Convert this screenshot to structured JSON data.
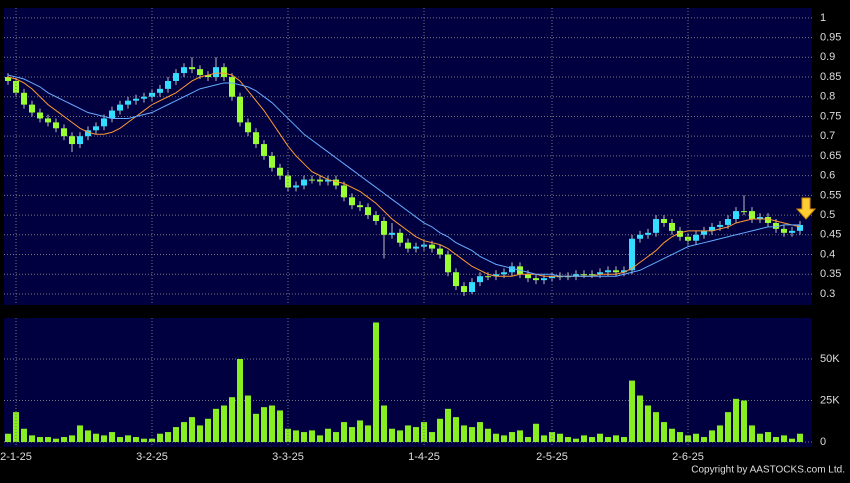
{
  "chart_data": [
    {
      "type": "candlestick",
      "up_color": "#33ddff",
      "down_color": "#99ff33",
      "open": [
        0.85,
        0.84,
        0.81,
        0.78,
        0.76,
        0.745,
        0.735,
        0.72,
        0.7,
        0.68,
        0.7,
        0.715,
        0.725,
        0.745,
        0.765,
        0.78,
        0.79,
        0.795,
        0.8,
        0.81,
        0.82,
        0.84,
        0.86,
        0.875,
        0.87,
        0.855,
        0.85,
        0.875,
        0.85,
        0.8,
        0.735,
        0.71,
        0.68,
        0.65,
        0.62,
        0.6,
        0.57,
        0.575,
        0.59,
        0.59,
        0.585,
        0.59,
        0.575,
        0.545,
        0.525,
        0.52,
        0.5,
        0.485,
        0.45,
        0.455,
        0.43,
        0.415,
        0.42,
        0.425,
        0.415,
        0.4,
        0.355,
        0.32,
        0.305,
        0.33,
        0.345,
        0.345,
        0.35,
        0.355,
        0.37,
        0.35,
        0.34,
        0.335,
        0.34,
        0.345,
        0.345,
        0.345,
        0.35,
        0.35,
        0.35,
        0.355,
        0.36,
        0.355,
        0.36,
        0.44,
        0.45,
        0.455,
        0.49,
        0.48,
        0.46,
        0.445,
        0.435,
        0.45,
        0.46,
        0.47,
        0.475,
        0.49,
        0.51,
        0.51,
        0.49,
        0.495,
        0.48,
        0.465,
        0.455,
        0.46
      ],
      "high": [
        0.86,
        0.85,
        0.82,
        0.79,
        0.77,
        0.755,
        0.745,
        0.73,
        0.71,
        0.71,
        0.725,
        0.735,
        0.755,
        0.775,
        0.79,
        0.8,
        0.805,
        0.81,
        0.82,
        0.83,
        0.85,
        0.87,
        0.885,
        0.9,
        0.88,
        0.865,
        0.9,
        0.885,
        0.86,
        0.81,
        0.745,
        0.72,
        0.69,
        0.66,
        0.63,
        0.61,
        0.585,
        0.6,
        0.6,
        0.6,
        0.6,
        0.6,
        0.585,
        0.555,
        0.535,
        0.53,
        0.51,
        0.495,
        0.48,
        0.465,
        0.44,
        0.43,
        0.435,
        0.435,
        0.425,
        0.41,
        0.365,
        0.33,
        0.34,
        0.355,
        0.355,
        0.36,
        0.365,
        0.38,
        0.38,
        0.36,
        0.35,
        0.35,
        0.355,
        0.355,
        0.355,
        0.36,
        0.36,
        0.36,
        0.365,
        0.37,
        0.37,
        0.37,
        0.45,
        0.46,
        0.465,
        0.5,
        0.5,
        0.49,
        0.47,
        0.455,
        0.46,
        0.47,
        0.48,
        0.485,
        0.5,
        0.52,
        0.55,
        0.52,
        0.505,
        0.505,
        0.49,
        0.475,
        0.47,
        0.485
      ],
      "low": [
        0.83,
        0.8,
        0.77,
        0.75,
        0.735,
        0.725,
        0.71,
        0.69,
        0.66,
        0.67,
        0.69,
        0.705,
        0.715,
        0.735,
        0.755,
        0.77,
        0.78,
        0.785,
        0.79,
        0.8,
        0.81,
        0.83,
        0.85,
        0.86,
        0.845,
        0.84,
        0.84,
        0.84,
        0.79,
        0.725,
        0.7,
        0.67,
        0.64,
        0.61,
        0.59,
        0.56,
        0.56,
        0.565,
        0.58,
        0.575,
        0.575,
        0.565,
        0.535,
        0.515,
        0.51,
        0.49,
        0.475,
        0.39,
        0.44,
        0.42,
        0.405,
        0.405,
        0.41,
        0.405,
        0.39,
        0.345,
        0.31,
        0.295,
        0.3,
        0.32,
        0.335,
        0.335,
        0.34,
        0.345,
        0.34,
        0.33,
        0.325,
        0.325,
        0.33,
        0.335,
        0.335,
        0.335,
        0.34,
        0.34,
        0.34,
        0.345,
        0.345,
        0.345,
        0.35,
        0.43,
        0.44,
        0.445,
        0.47,
        0.45,
        0.435,
        0.425,
        0.425,
        0.44,
        0.45,
        0.46,
        0.465,
        0.48,
        0.5,
        0.48,
        0.48,
        0.47,
        0.455,
        0.445,
        0.445,
        0.45
      ],
      "close": [
        0.84,
        0.81,
        0.78,
        0.76,
        0.745,
        0.735,
        0.72,
        0.7,
        0.68,
        0.7,
        0.715,
        0.725,
        0.745,
        0.765,
        0.78,
        0.79,
        0.795,
        0.8,
        0.81,
        0.82,
        0.84,
        0.86,
        0.875,
        0.87,
        0.855,
        0.85,
        0.875,
        0.85,
        0.8,
        0.735,
        0.71,
        0.68,
        0.65,
        0.62,
        0.6,
        0.57,
        0.575,
        0.59,
        0.59,
        0.585,
        0.59,
        0.575,
        0.545,
        0.525,
        0.52,
        0.5,
        0.485,
        0.45,
        0.455,
        0.43,
        0.415,
        0.42,
        0.425,
        0.415,
        0.4,
        0.355,
        0.32,
        0.305,
        0.33,
        0.345,
        0.345,
        0.35,
        0.355,
        0.37,
        0.35,
        0.34,
        0.335,
        0.34,
        0.345,
        0.345,
        0.345,
        0.35,
        0.35,
        0.35,
        0.355,
        0.36,
        0.355,
        0.36,
        0.44,
        0.45,
        0.455,
        0.49,
        0.48,
        0.46,
        0.445,
        0.435,
        0.45,
        0.46,
        0.47,
        0.475,
        0.49,
        0.51,
        0.51,
        0.49,
        0.495,
        0.48,
        0.465,
        0.455,
        0.46,
        0.475
      ],
      "series": [
        {
          "color": "#ff9933",
          "values": [
            0.85,
            0.845,
            0.835,
            0.82,
            0.8,
            0.78,
            0.765,
            0.75,
            0.735,
            0.72,
            0.71,
            0.705,
            0.705,
            0.71,
            0.72,
            0.735,
            0.75,
            0.765,
            0.78,
            0.79,
            0.8,
            0.81,
            0.825,
            0.84,
            0.85,
            0.855,
            0.86,
            0.86,
            0.855,
            0.84,
            0.815,
            0.79,
            0.765,
            0.735,
            0.705,
            0.675,
            0.65,
            0.63,
            0.61,
            0.6,
            0.59,
            0.585,
            0.58,
            0.57,
            0.56,
            0.545,
            0.53,
            0.51,
            0.49,
            0.475,
            0.46,
            0.445,
            0.435,
            0.43,
            0.425,
            0.415,
            0.4,
            0.385,
            0.37,
            0.36,
            0.35,
            0.345,
            0.345,
            0.345,
            0.35,
            0.35,
            0.35,
            0.345,
            0.345,
            0.345,
            0.345,
            0.345,
            0.345,
            0.345,
            0.35,
            0.35,
            0.35,
            0.355,
            0.365,
            0.38,
            0.395,
            0.41,
            0.43,
            0.445,
            0.455,
            0.46,
            0.46,
            0.46,
            0.46,
            0.465,
            0.47,
            0.48,
            0.485,
            0.49,
            0.49,
            0.49,
            0.485,
            0.48,
            0.475,
            0.47
          ]
        },
        {
          "color": "#66aaff",
          "values": [
            0.855,
            0.85,
            0.845,
            0.835,
            0.825,
            0.81,
            0.8,
            0.79,
            0.78,
            0.77,
            0.76,
            0.755,
            0.75,
            0.745,
            0.745,
            0.745,
            0.75,
            0.755,
            0.76,
            0.77,
            0.78,
            0.79,
            0.8,
            0.81,
            0.82,
            0.825,
            0.83,
            0.835,
            0.835,
            0.83,
            0.825,
            0.815,
            0.8,
            0.785,
            0.765,
            0.745,
            0.725,
            0.705,
            0.69,
            0.675,
            0.66,
            0.645,
            0.63,
            0.615,
            0.6,
            0.585,
            0.57,
            0.555,
            0.54,
            0.525,
            0.51,
            0.495,
            0.48,
            0.47,
            0.455,
            0.445,
            0.43,
            0.42,
            0.41,
            0.395,
            0.385,
            0.375,
            0.37,
            0.365,
            0.36,
            0.355,
            0.35,
            0.35,
            0.35,
            0.345,
            0.345,
            0.345,
            0.345,
            0.345,
            0.345,
            0.345,
            0.345,
            0.35,
            0.355,
            0.36,
            0.37,
            0.38,
            0.39,
            0.4,
            0.41,
            0.42,
            0.425,
            0.43,
            0.435,
            0.44,
            0.445,
            0.45,
            0.455,
            0.46,
            0.465,
            0.47,
            0.47,
            0.475,
            0.475,
            0.475
          ]
        }
      ],
      "ylim": [
        0.272,
        1.025
      ],
      "yticks": [
        0.3,
        0.35,
        0.4,
        0.45,
        0.5,
        0.55,
        0.6,
        0.65,
        0.7,
        0.75,
        0.8,
        0.85,
        0.9,
        0.95,
        1
      ],
      "grid": true
    },
    {
      "type": "bar",
      "color": "#88ee22",
      "categories": [
        null,
        "2-1-25",
        null,
        null,
        null,
        null,
        null,
        null,
        null,
        null,
        null,
        null,
        null,
        null,
        null,
        null,
        null,
        null,
        "3-2-25",
        null,
        null,
        null,
        null,
        null,
        null,
        null,
        null,
        null,
        null,
        null,
        null,
        null,
        null,
        null,
        null,
        "3-3-25",
        null,
        null,
        null,
        null,
        null,
        null,
        null,
        null,
        null,
        null,
        null,
        null,
        null,
        null,
        null,
        null,
        "1-4-25",
        null,
        null,
        null,
        null,
        null,
        null,
        null,
        null,
        null,
        null,
        null,
        null,
        null,
        null,
        null,
        "2-5-25",
        null,
        null,
        null,
        null,
        null,
        null,
        null,
        null,
        null,
        null,
        null,
        null,
        null,
        null,
        null,
        null,
        "2-6-25",
        null,
        null,
        null,
        null,
        null,
        null,
        null,
        null,
        null,
        null,
        null,
        null,
        null,
        null
      ],
      "values": [
        5000,
        18000,
        8000,
        4000,
        3000,
        3000,
        2000,
        3000,
        4000,
        10000,
        7000,
        5000,
        4000,
        6000,
        3000,
        4000,
        3000,
        2000,
        2000,
        5000,
        6000,
        9000,
        12000,
        15000,
        10000,
        14000,
        20000,
        22000,
        27000,
        50000,
        28000,
        17000,
        21000,
        22000,
        19000,
        8000,
        7000,
        6000,
        7000,
        4000,
        8000,
        6000,
        12000,
        9000,
        13000,
        10000,
        72000,
        22000,
        8000,
        7000,
        10000,
        9000,
        12000,
        6000,
        14000,
        20000,
        15000,
        10000,
        9000,
        12000,
        8000,
        5000,
        4000,
        6000,
        7000,
        3000,
        11000,
        4000,
        6000,
        5000,
        3000,
        2000,
        4000,
        3000,
        5000,
        3000,
        4000,
        3000,
        37000,
        28000,
        22000,
        18000,
        12000,
        8000,
        6000,
        4000,
        5000,
        3000,
        7000,
        10000,
        18000,
        26000,
        25000,
        10000,
        5000,
        6000,
        3000,
        4000,
        2000,
        5000
      ],
      "ylim": [
        -3000,
        74700
      ],
      "yticks": [
        0,
        {
          "value": 25000,
          "label": "25K"
        },
        {
          "value": 50000,
          "label": "50K"
        }
      ],
      "grid": true
    }
  ],
  "copyright": "Copyright by AASTOCKS.com Ltd."
}
